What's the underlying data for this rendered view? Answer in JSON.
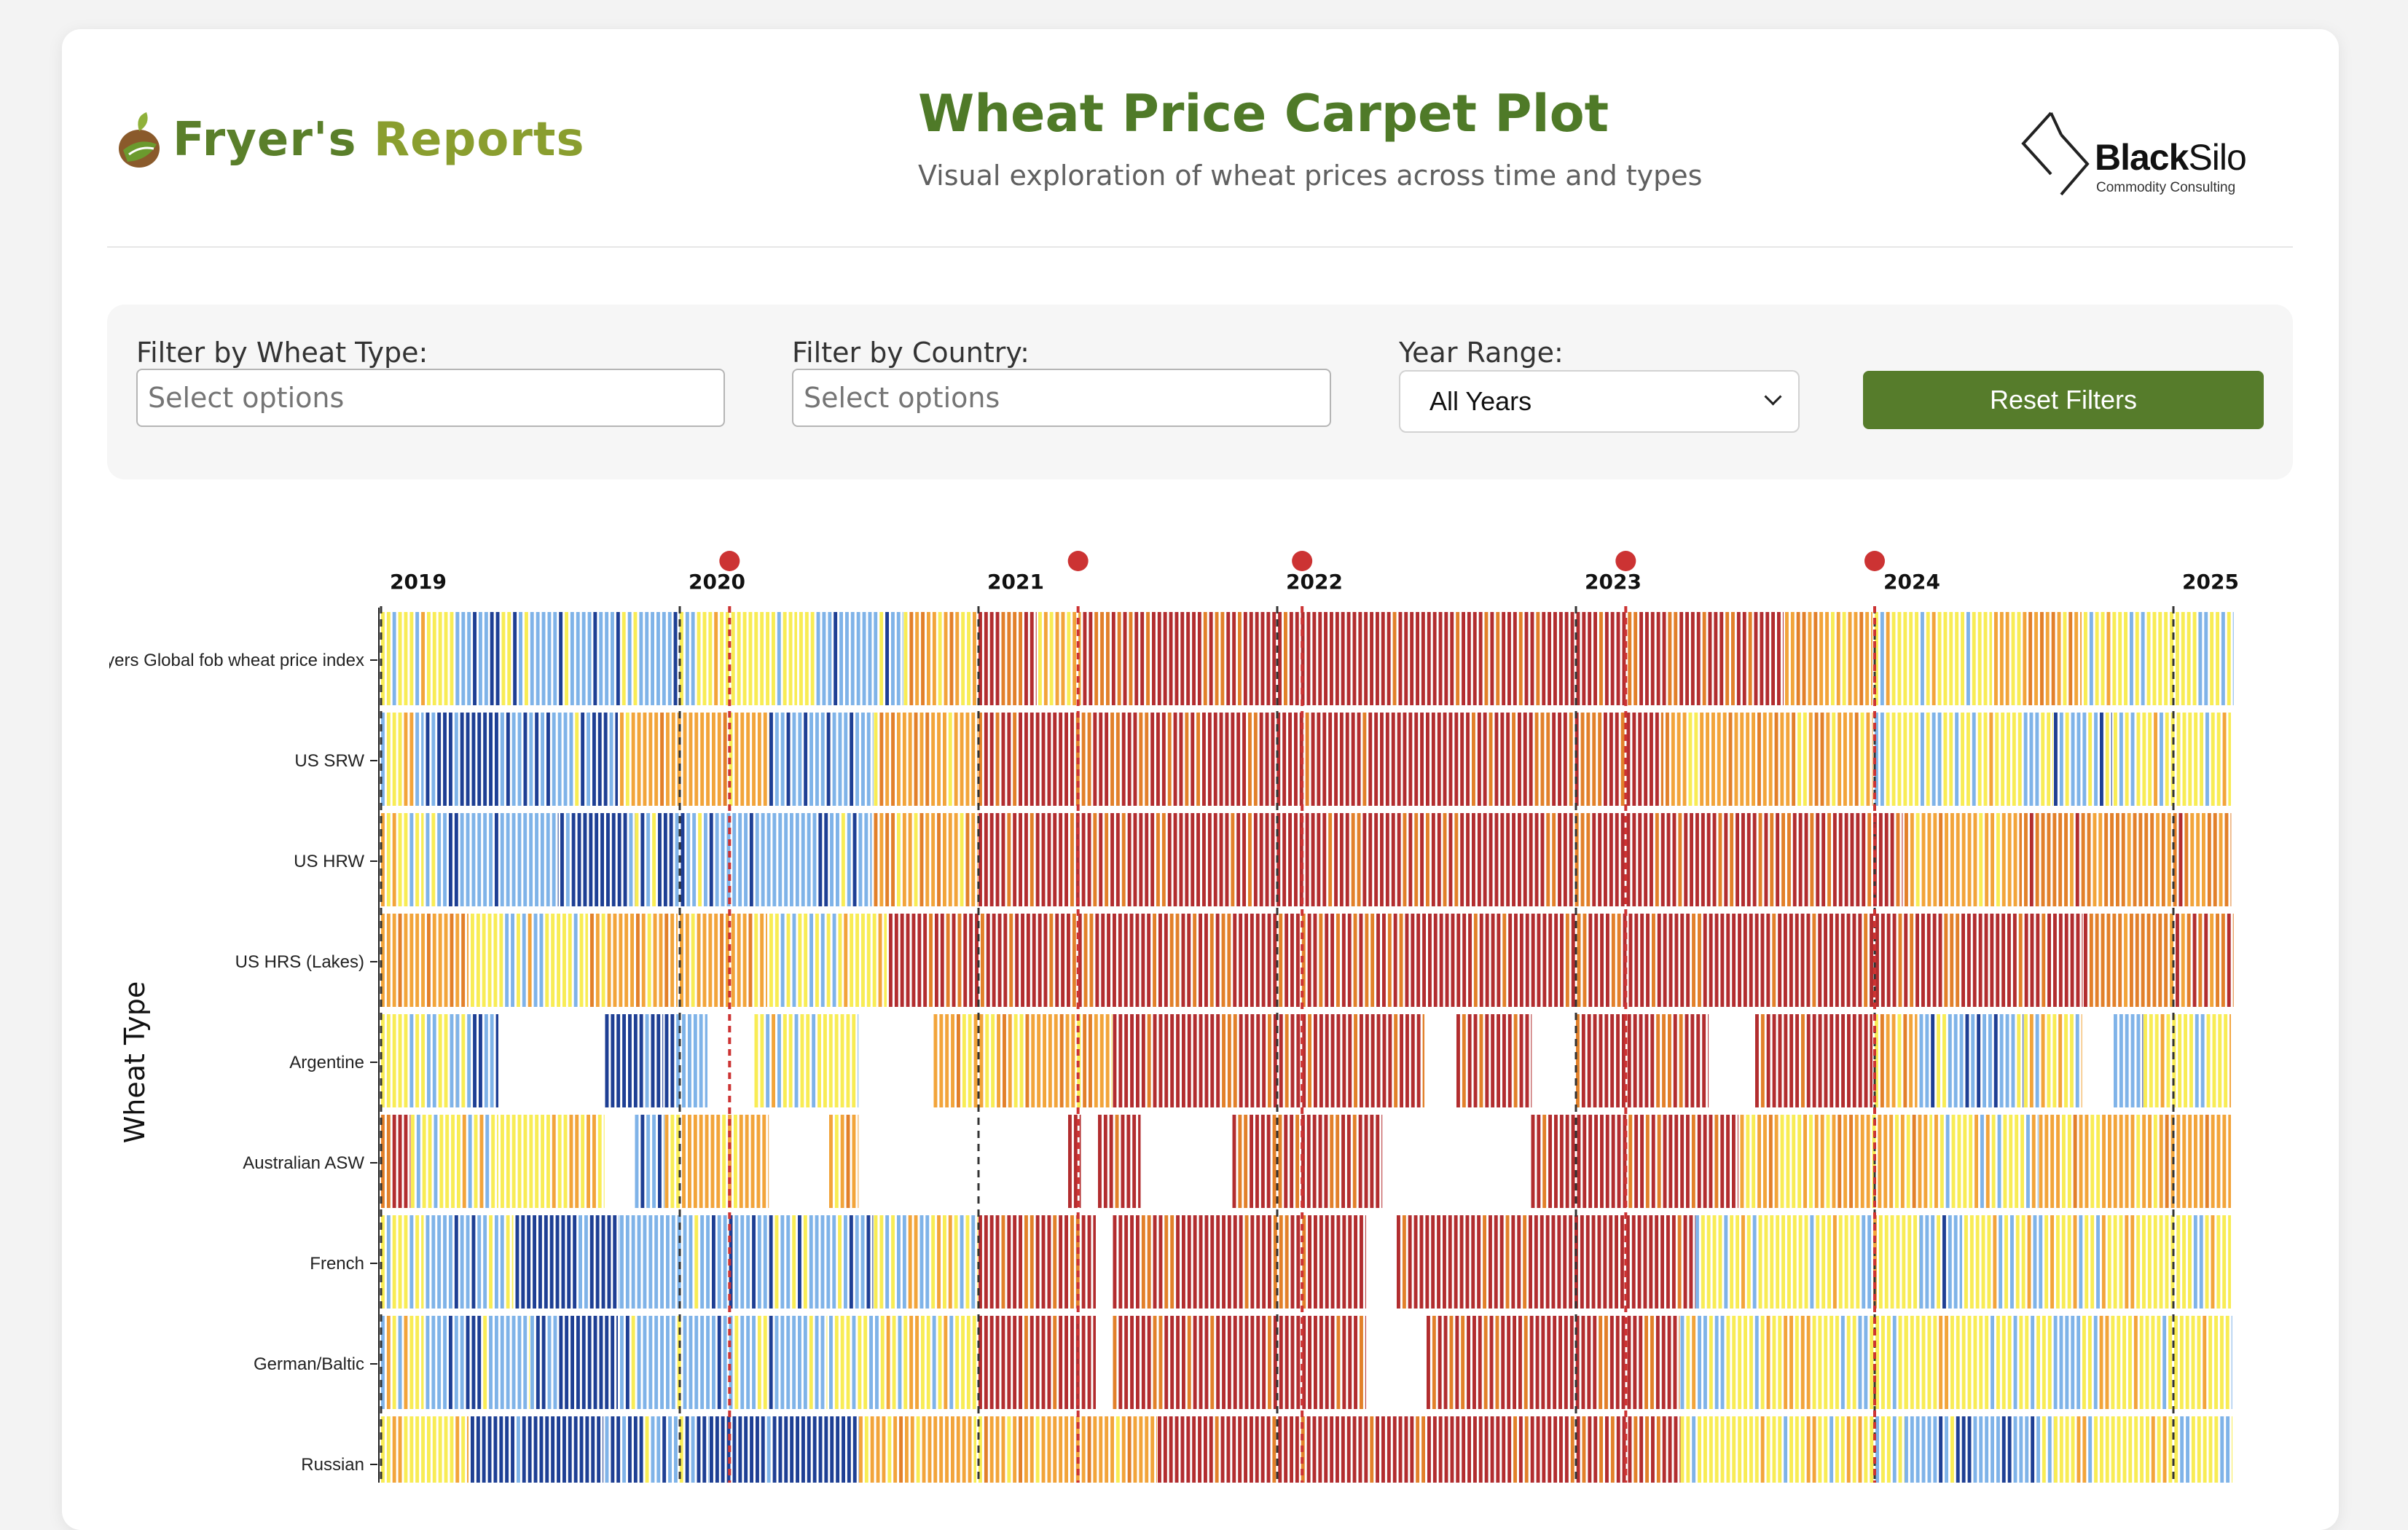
{
  "header": {
    "logo_word1": "Fryer's",
    "logo_word2": "Reports",
    "title": "Wheat Price Carpet Plot",
    "subtitle": "Visual exploration of wheat prices across time and types",
    "partner_name_bold": "Black",
    "partner_name_rest": "Silo",
    "partner_tagline": "Commodity Consulting"
  },
  "filters": {
    "wheat_type_label": "Filter by Wheat Type:",
    "wheat_type_placeholder": "Select options",
    "country_label": "Filter by Country:",
    "country_placeholder": "Select options",
    "year_range_label": "Year Range:",
    "year_range_value": "All Years",
    "reset_label": "Reset Filters"
  },
  "colors": {
    "accent": "#567c2b",
    "title": "#4f7a28",
    "event_marker": "#cc3333",
    "palette": [
      "#1e3f94",
      "#7fb3e8",
      "#f8ec55",
      "#f2a43a",
      "#e2802a",
      "#b22d2f"
    ]
  },
  "chart_data": {
    "type": "heatmap",
    "ylabel": "Wheat Type",
    "xlabel": "",
    "x_range": [
      "2019-01",
      "2025-03"
    ],
    "year_ticks": [
      "2019",
      "2020",
      "2021",
      "2022",
      "2023",
      "2024",
      "2025"
    ],
    "rows": [
      "Fryers Global fob wheat price index",
      "US SRW",
      "US HRW",
      "US HRS (Lakes)",
      "Argentine",
      "Australian ASW",
      "French",
      "German/Baltic",
      "Russian"
    ],
    "event_markers": [
      "2020-03",
      "2021-05",
      "2022-02",
      "2023-03",
      "2024-01"
    ],
    "color_levels": [
      "very low",
      "low",
      "mid",
      "mid-high",
      "high",
      "very high"
    ],
    "segments": [
      [
        [
          2019.0,
          2019.25,
          2
        ],
        [
          2019.25,
          2020.0,
          1
        ],
        [
          2020.0,
          2020.4,
          2
        ],
        [
          2020.4,
          2020.75,
          1
        ],
        [
          2020.75,
          2021.0,
          3
        ],
        [
          2021.0,
          2021.2,
          5
        ],
        [
          2021.2,
          2021.35,
          3
        ],
        [
          2021.35,
          2023.7,
          5
        ],
        [
          2023.7,
          2024.0,
          3
        ],
        [
          2024.0,
          2024.4,
          2
        ],
        [
          2024.4,
          2024.7,
          3
        ],
        [
          2024.7,
          2025.2,
          2
        ]
      ],
      [
        [
          2019.0,
          2019.15,
          2
        ],
        [
          2019.15,
          2019.4,
          0
        ],
        [
          2019.4,
          2019.8,
          1
        ],
        [
          2019.8,
          2020.3,
          3
        ],
        [
          2020.3,
          2020.65,
          1
        ],
        [
          2020.65,
          2021.0,
          3
        ],
        [
          2021.0,
          2023.3,
          5
        ],
        [
          2023.3,
          2024.0,
          3
        ],
        [
          2024.0,
          2024.6,
          2
        ],
        [
          2024.6,
          2024.8,
          1
        ],
        [
          2024.8,
          2025.2,
          2
        ]
      ],
      [
        [
          2019.0,
          2019.15,
          2
        ],
        [
          2019.15,
          2019.6,
          1
        ],
        [
          2019.6,
          2019.85,
          0
        ],
        [
          2019.85,
          2020.65,
          1
        ],
        [
          2020.65,
          2021.0,
          3
        ],
        [
          2021.0,
          2024.1,
          5
        ],
        [
          2024.1,
          2024.5,
          3
        ],
        [
          2024.5,
          2025.2,
          4
        ]
      ],
      [
        [
          2019.0,
          2019.3,
          3
        ],
        [
          2019.3,
          2019.7,
          2
        ],
        [
          2019.7,
          2020.0,
          3
        ],
        [
          2020.0,
          2020.3,
          3
        ],
        [
          2020.3,
          2020.7,
          2
        ],
        [
          2020.7,
          2024.7,
          5
        ],
        [
          2024.7,
          2025.2,
          4
        ]
      ],
      [
        [
          2019.0,
          2019.25,
          2
        ],
        [
          2019.25,
          2019.4,
          1
        ],
        [
          2019.4,
          2019.75,
          -1
        ],
        [
          2019.75,
          2019.95,
          0
        ],
        [
          2019.95,
          2020.1,
          1
        ],
        [
          2020.1,
          2020.25,
          -1
        ],
        [
          2020.25,
          2020.6,
          2
        ],
        [
          2020.6,
          2020.85,
          -1
        ],
        [
          2020.85,
          2021.45,
          3
        ],
        [
          2021.45,
          2022.5,
          5
        ],
        [
          2022.5,
          2022.6,
          -1
        ],
        [
          2022.6,
          2022.85,
          5
        ],
        [
          2022.85,
          2023.0,
          -1
        ],
        [
          2023.0,
          2023.45,
          5
        ],
        [
          2023.45,
          2023.6,
          -1
        ],
        [
          2023.6,
          2024.0,
          5
        ],
        [
          2024.0,
          2024.15,
          3
        ],
        [
          2024.15,
          2024.5,
          1
        ],
        [
          2024.5,
          2024.7,
          2
        ],
        [
          2024.7,
          2024.8,
          -1
        ],
        [
          2024.8,
          2024.9,
          1
        ],
        [
          2024.9,
          2025.2,
          2
        ]
      ],
      [
        [
          2019.0,
          2019.1,
          5
        ],
        [
          2019.1,
          2019.4,
          2
        ],
        [
          2019.4,
          2019.75,
          2
        ],
        [
          2019.75,
          2019.85,
          -1
        ],
        [
          2019.85,
          2019.95,
          1
        ],
        [
          2019.95,
          2020.3,
          3
        ],
        [
          2020.3,
          2020.5,
          -1
        ],
        [
          2020.5,
          2020.6,
          3
        ],
        [
          2020.6,
          2021.3,
          -1
        ],
        [
          2021.3,
          2021.35,
          5
        ],
        [
          2021.35,
          2021.4,
          -1
        ],
        [
          2021.4,
          2021.55,
          5
        ],
        [
          2021.55,
          2021.85,
          -1
        ],
        [
          2021.85,
          2022.35,
          5
        ],
        [
          2022.35,
          2022.85,
          -1
        ],
        [
          2022.85,
          2023.55,
          5
        ],
        [
          2023.55,
          2024.2,
          3
        ],
        [
          2024.2,
          2024.55,
          2
        ],
        [
          2024.55,
          2025.2,
          3
        ]
      ],
      [
        [
          2019.0,
          2019.15,
          2
        ],
        [
          2019.15,
          2019.45,
          1
        ],
        [
          2019.45,
          2019.8,
          0
        ],
        [
          2019.8,
          2020.65,
          1
        ],
        [
          2020.65,
          2021.0,
          2
        ],
        [
          2021.0,
          2021.4,
          5
        ],
        [
          2021.4,
          2021.45,
          -1
        ],
        [
          2021.45,
          2022.3,
          5
        ],
        [
          2022.3,
          2022.4,
          -1
        ],
        [
          2022.4,
          2023.4,
          5
        ],
        [
          2023.4,
          2024.15,
          2
        ],
        [
          2024.15,
          2024.3,
          1
        ],
        [
          2024.3,
          2025.2,
          2
        ]
      ],
      [
        [
          2019.0,
          2019.15,
          2
        ],
        [
          2019.15,
          2019.5,
          1
        ],
        [
          2019.5,
          2019.8,
          0
        ],
        [
          2019.8,
          2020.5,
          1
        ],
        [
          2020.5,
          2021.0,
          2
        ],
        [
          2021.0,
          2021.4,
          5
        ],
        [
          2021.4,
          2021.45,
          -1
        ],
        [
          2021.45,
          2022.3,
          5
        ],
        [
          2022.3,
          2022.5,
          -1
        ],
        [
          2022.5,
          2023.35,
          5
        ],
        [
          2023.35,
          2024.1,
          2
        ],
        [
          2024.1,
          2025.2,
          2
        ]
      ],
      [
        [
          2019.0,
          2019.3,
          2
        ],
        [
          2019.3,
          2019.75,
          0
        ],
        [
          2019.75,
          2020.1,
          1
        ],
        [
          2020.1,
          2020.6,
          0
        ],
        [
          2020.6,
          2021.0,
          3
        ],
        [
          2021.0,
          2021.6,
          3
        ],
        [
          2021.6,
          2023.35,
          5
        ],
        [
          2023.35,
          2024.1,
          2
        ],
        [
          2024.1,
          2024.6,
          1
        ],
        [
          2024.6,
          2025.2,
          2
        ]
      ]
    ]
  }
}
